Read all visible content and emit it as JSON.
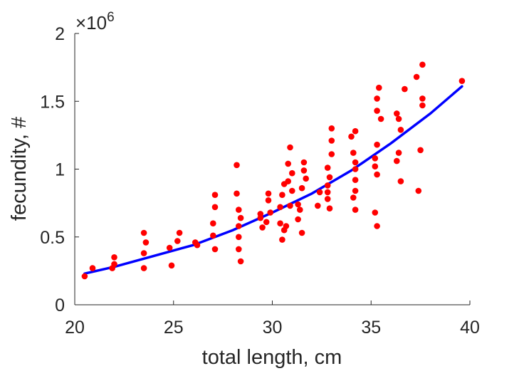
{
  "chart_data": {
    "type": "scatter",
    "xlabel": "total length, cm",
    "ylabel": "fecundity, #",
    "xlim": [
      20,
      40
    ],
    "ylim": [
      0,
      2
    ],
    "y_multiplier": "×10",
    "y_exponent": "6",
    "x_ticks": [
      "20",
      "25",
      "30",
      "35",
      "40"
    ],
    "y_ticks": [
      "0",
      "0.5",
      "1",
      "1.5",
      "2"
    ],
    "grid": false,
    "marker_color": "#ff0000",
    "fit_color": "#0000ff",
    "series": [
      {
        "kind": "scatter",
        "points": [
          [
            20.5,
            0.21
          ],
          [
            20.9,
            0.27
          ],
          [
            21.9,
            0.27
          ],
          [
            22.0,
            0.3
          ],
          [
            22.0,
            0.35
          ],
          [
            23.5,
            0.27
          ],
          [
            23.5,
            0.38
          ],
          [
            23.6,
            0.46
          ],
          [
            23.5,
            0.53
          ],
          [
            24.8,
            0.42
          ],
          [
            24.9,
            0.29
          ],
          [
            25.2,
            0.47
          ],
          [
            25.3,
            0.53
          ],
          [
            26.1,
            0.46
          ],
          [
            26.2,
            0.44
          ],
          [
            27.0,
            0.6
          ],
          [
            27.0,
            0.51
          ],
          [
            27.1,
            0.41
          ],
          [
            27.1,
            0.72
          ],
          [
            27.1,
            0.81
          ],
          [
            28.2,
            0.82
          ],
          [
            28.2,
            1.03
          ],
          [
            28.3,
            0.7
          ],
          [
            28.3,
            0.58
          ],
          [
            28.3,
            0.5
          ],
          [
            28.3,
            0.41
          ],
          [
            28.4,
            0.32
          ],
          [
            28.4,
            0.64
          ],
          [
            29.4,
            0.64
          ],
          [
            29.4,
            0.67
          ],
          [
            29.5,
            0.57
          ],
          [
            29.8,
            0.82
          ],
          [
            29.8,
            0.77
          ],
          [
            29.9,
            0.68
          ],
          [
            29.7,
            0.61
          ],
          [
            30.4,
            0.72
          ],
          [
            30.5,
            0.81
          ],
          [
            30.6,
            0.89
          ],
          [
            30.8,
            0.91
          ],
          [
            30.9,
            1.16
          ],
          [
            30.8,
            1.04
          ],
          [
            31.0,
            0.97
          ],
          [
            31.0,
            0.84
          ],
          [
            30.9,
            0.73
          ],
          [
            30.6,
            0.55
          ],
          [
            30.5,
            0.48
          ],
          [
            30.4,
            0.6
          ],
          [
            30.7,
            0.58
          ],
          [
            31.3,
            0.74
          ],
          [
            31.3,
            0.63
          ],
          [
            31.4,
            0.7
          ],
          [
            31.5,
            0.86
          ],
          [
            31.5,
            0.53
          ],
          [
            31.6,
            0.99
          ],
          [
            31.7,
            0.93
          ],
          [
            31.6,
            1.05
          ],
          [
            32.3,
            0.73
          ],
          [
            32.4,
            0.83
          ],
          [
            32.8,
            0.78
          ],
          [
            32.8,
            0.83
          ],
          [
            32.8,
            0.88
          ],
          [
            32.9,
            0.94
          ],
          [
            32.9,
            0.71
          ],
          [
            32.8,
            1.01
          ],
          [
            33.0,
            1.11
          ],
          [
            33.0,
            1.21
          ],
          [
            33.0,
            1.3
          ],
          [
            34.0,
            1.24
          ],
          [
            34.1,
            1.12
          ],
          [
            34.2,
            1.28
          ],
          [
            34.2,
            1.05
          ],
          [
            34.2,
            1.0
          ],
          [
            34.2,
            0.92
          ],
          [
            34.2,
            0.84
          ],
          [
            34.1,
            0.79
          ],
          [
            34.2,
            0.7
          ],
          [
            35.2,
            1.08
          ],
          [
            35.3,
            1.18
          ],
          [
            35.2,
            1.02
          ],
          [
            35.3,
            0.96
          ],
          [
            35.2,
            0.68
          ],
          [
            35.3,
            0.58
          ],
          [
            35.3,
            1.43
          ],
          [
            35.3,
            1.52
          ],
          [
            35.4,
            1.6
          ],
          [
            35.5,
            1.37
          ],
          [
            36.3,
            1.41
          ],
          [
            36.5,
            1.29
          ],
          [
            36.4,
            1.37
          ],
          [
            36.3,
            1.06
          ],
          [
            36.4,
            1.12
          ],
          [
            36.5,
            0.91
          ],
          [
            36.7,
            1.59
          ],
          [
            37.3,
            1.68
          ],
          [
            37.4,
            0.84
          ],
          [
            37.6,
            1.77
          ],
          [
            37.6,
            1.52
          ],
          [
            37.6,
            1.47
          ],
          [
            37.5,
            1.14
          ],
          [
            39.6,
            1.65
          ]
        ]
      },
      {
        "kind": "fit-line",
        "x": [
          20.5,
          22,
          24,
          26,
          28,
          30,
          32,
          34,
          36,
          38,
          39.6
        ],
        "y": [
          0.23,
          0.28,
          0.36,
          0.44,
          0.55,
          0.68,
          0.82,
          0.99,
          1.19,
          1.41,
          1.61
        ]
      }
    ]
  }
}
